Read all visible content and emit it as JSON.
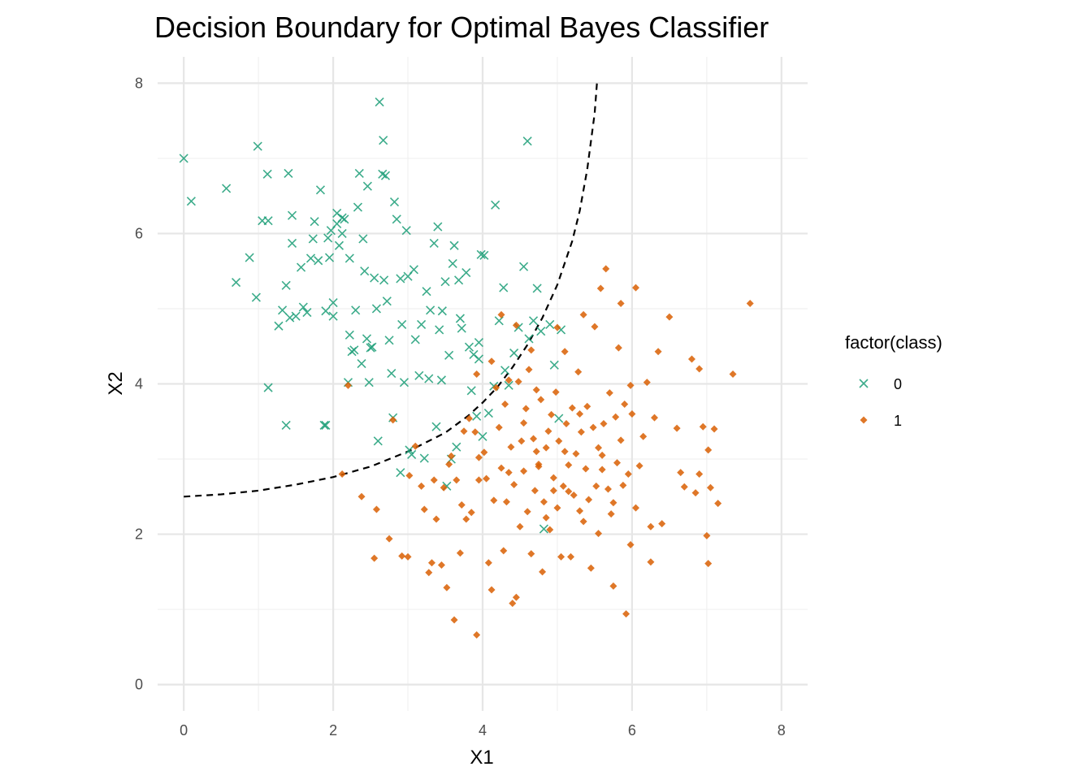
{
  "chart_data": {
    "type": "scatter",
    "title": "Decision Boundary for Optimal Bayes Classifier",
    "xlabel": "X1",
    "ylabel": "X2",
    "xlim": [
      -0.35,
      8.35
    ],
    "ylim": [
      -0.35,
      8.35
    ],
    "x_ticks": [
      0,
      2,
      4,
      6,
      8
    ],
    "y_ticks": [
      0,
      2,
      4,
      6,
      8
    ],
    "grid": true,
    "legend": {
      "title": "factor(class)",
      "position": "right"
    },
    "series": [
      {
        "name": "0",
        "marker": "x",
        "color": "#1b9e77",
        "points": [
          [
            0.0,
            7.0
          ],
          [
            0.1,
            6.43
          ],
          [
            0.57,
            6.6
          ],
          [
            0.7,
            5.35
          ],
          [
            0.88,
            5.68
          ],
          [
            0.97,
            5.15
          ],
          [
            0.99,
            7.16
          ],
          [
            1.05,
            6.17
          ],
          [
            1.13,
            6.17
          ],
          [
            1.12,
            6.79
          ],
          [
            1.13,
            3.95
          ],
          [
            1.27,
            4.77
          ],
          [
            1.32,
            4.98
          ],
          [
            1.37,
            5.31
          ],
          [
            1.37,
            3.45
          ],
          [
            1.4,
            6.8
          ],
          [
            1.42,
            4.88
          ],
          [
            1.45,
            5.87
          ],
          [
            1.45,
            6.24
          ],
          [
            1.5,
            4.9
          ],
          [
            1.57,
            5.55
          ],
          [
            1.6,
            5.02
          ],
          [
            1.65,
            4.95
          ],
          [
            1.73,
            5.93
          ],
          [
            1.75,
            6.16
          ],
          [
            1.8,
            5.64
          ],
          [
            1.83,
            6.58
          ],
          [
            1.88,
            3.45
          ],
          [
            1.9,
            3.45
          ],
          [
            1.9,
            4.97
          ],
          [
            1.93,
            5.94
          ],
          [
            1.95,
            5.68
          ],
          [
            1.97,
            6.04
          ],
          [
            2.0,
            4.9
          ],
          [
            2.0,
            5.08
          ],
          [
            2.05,
            6.27
          ],
          [
            2.05,
            6.13
          ],
          [
            2.08,
            5.84
          ],
          [
            2.12,
            6.21
          ],
          [
            2.15,
            6.19
          ],
          [
            2.2,
            4.02
          ],
          [
            2.22,
            5.67
          ],
          [
            2.22,
            4.65
          ],
          [
            2.25,
            4.43
          ],
          [
            2.28,
            4.45
          ],
          [
            2.3,
            4.98
          ],
          [
            2.33,
            6.35
          ],
          [
            2.35,
            6.8
          ],
          [
            2.38,
            4.27
          ],
          [
            2.42,
            5.5
          ],
          [
            2.45,
            4.6
          ],
          [
            2.46,
            6.63
          ],
          [
            2.48,
            4.02
          ],
          [
            2.5,
            4.48
          ],
          [
            2.52,
            4.49
          ],
          [
            2.55,
            5.41
          ],
          [
            2.6,
            3.24
          ],
          [
            2.62,
            7.75
          ],
          [
            2.66,
            6.79
          ],
          [
            2.67,
            7.24
          ],
          [
            2.68,
            5.38
          ],
          [
            2.7,
            6.77
          ],
          [
            2.72,
            5.1
          ],
          [
            2.75,
            4.58
          ],
          [
            2.78,
            4.14
          ],
          [
            2.8,
            3.55
          ],
          [
            2.82,
            6.42
          ],
          [
            2.85,
            6.19
          ],
          [
            2.9,
            2.82
          ],
          [
            2.92,
            4.79
          ],
          [
            2.95,
            4.02
          ],
          [
            2.98,
            6.04
          ],
          [
            3.0,
            5.43
          ],
          [
            3.02,
            3.12
          ],
          [
            3.05,
            3.06
          ],
          [
            3.08,
            5.52
          ],
          [
            3.1,
            4.59
          ],
          [
            3.15,
            4.11
          ],
          [
            3.18,
            4.79
          ],
          [
            3.22,
            3.01
          ],
          [
            3.25,
            5.23
          ],
          [
            3.28,
            4.07
          ],
          [
            3.3,
            4.98
          ],
          [
            3.35,
            5.87
          ],
          [
            3.38,
            3.43
          ],
          [
            3.4,
            6.09
          ],
          [
            3.42,
            4.72
          ],
          [
            3.46,
            4.97
          ],
          [
            3.5,
            5.36
          ],
          [
            3.52,
            2.64
          ],
          [
            3.55,
            4.38
          ],
          [
            3.58,
            3.0
          ],
          [
            3.6,
            5.6
          ],
          [
            3.62,
            5.84
          ],
          [
            3.65,
            3.16
          ],
          [
            3.68,
            5.38
          ],
          [
            3.7,
            4.87
          ],
          [
            3.72,
            4.74
          ],
          [
            3.78,
            5.48
          ],
          [
            3.82,
            4.49
          ],
          [
            3.85,
            3.91
          ],
          [
            3.88,
            4.39
          ],
          [
            3.92,
            3.57
          ],
          [
            3.95,
            4.33
          ],
          [
            3.98,
            5.72
          ],
          [
            4.0,
            3.3
          ],
          [
            4.02,
            5.71
          ],
          [
            4.08,
            3.61
          ],
          [
            4.15,
            3.97
          ],
          [
            4.17,
            6.38
          ],
          [
            4.22,
            4.84
          ],
          [
            4.28,
            5.28
          ],
          [
            4.35,
            3.98
          ],
          [
            4.42,
            4.41
          ],
          [
            4.48,
            4.75
          ],
          [
            4.55,
            5.56
          ],
          [
            4.6,
            7.23
          ],
          [
            4.68,
            4.84
          ],
          [
            4.73,
            5.27
          ],
          [
            4.78,
            4.7
          ],
          [
            4.82,
            2.07
          ],
          [
            4.9,
            4.79
          ],
          [
            4.96,
            4.25
          ],
          [
            5.02,
            3.54
          ],
          [
            5.05,
            4.72
          ],
          [
            4.3,
            4.18
          ],
          [
            3.45,
            4.05
          ],
          [
            2.58,
            5.0
          ],
          [
            2.4,
            5.93
          ],
          [
            2.12,
            6.0
          ],
          [
            1.7,
            5.67
          ],
          [
            2.9,
            5.4
          ],
          [
            3.95,
            4.55
          ],
          [
            4.62,
            4.6
          ]
        ]
      },
      {
        "name": "1",
        "marker": "diamond",
        "color": "#d95f02",
        "points": [
          [
            2.12,
            2.8
          ],
          [
            2.2,
            3.98
          ],
          [
            2.38,
            2.5
          ],
          [
            2.55,
            1.68
          ],
          [
            2.58,
            2.33
          ],
          [
            2.75,
            1.94
          ],
          [
            2.8,
            3.52
          ],
          [
            2.92,
            1.71
          ],
          [
            3.0,
            1.7
          ],
          [
            3.02,
            2.78
          ],
          [
            3.1,
            3.17
          ],
          [
            3.18,
            2.64
          ],
          [
            3.22,
            2.33
          ],
          [
            3.28,
            1.49
          ],
          [
            3.32,
            1.62
          ],
          [
            3.38,
            2.2
          ],
          [
            3.45,
            1.59
          ],
          [
            3.48,
            2.62
          ],
          [
            3.52,
            1.29
          ],
          [
            3.58,
            3.04
          ],
          [
            3.62,
            0.86
          ],
          [
            3.65,
            2.72
          ],
          [
            3.7,
            1.75
          ],
          [
            3.72,
            2.39
          ],
          [
            3.78,
            2.2
          ],
          [
            3.82,
            3.54
          ],
          [
            3.85,
            2.29
          ],
          [
            3.9,
            3.36
          ],
          [
            3.92,
            0.66
          ],
          [
            3.95,
            2.72
          ],
          [
            4.02,
            3.09
          ],
          [
            4.05,
            2.74
          ],
          [
            4.08,
            1.62
          ],
          [
            4.12,
            1.26
          ],
          [
            4.18,
            3.95
          ],
          [
            4.22,
            3.42
          ],
          [
            4.25,
            2.88
          ],
          [
            4.28,
            1.78
          ],
          [
            4.3,
            3.73
          ],
          [
            4.32,
            2.43
          ],
          [
            4.35,
            4.05
          ],
          [
            4.38,
            3.16
          ],
          [
            4.4,
            1.08
          ],
          [
            4.42,
            2.66
          ],
          [
            4.45,
            1.16
          ],
          [
            4.48,
            4.03
          ],
          [
            4.52,
            3.24
          ],
          [
            4.55,
            2.84
          ],
          [
            4.58,
            3.67
          ],
          [
            4.6,
            2.3
          ],
          [
            4.62,
            4.19
          ],
          [
            4.65,
            1.74
          ],
          [
            4.68,
            3.27
          ],
          [
            4.7,
            2.58
          ],
          [
            4.72,
            3.92
          ],
          [
            4.75,
            2.93
          ],
          [
            4.78,
            3.79
          ],
          [
            4.8,
            1.5
          ],
          [
            4.82,
            2.43
          ],
          [
            4.85,
            3.15
          ],
          [
            4.88,
            3.37
          ],
          [
            4.9,
            2.06
          ],
          [
            4.92,
            3.59
          ],
          [
            4.95,
            2.75
          ],
          [
            4.98,
            3.89
          ],
          [
            5.0,
            2.35
          ],
          [
            5.02,
            3.24
          ],
          [
            5.05,
            1.7
          ],
          [
            5.08,
            2.64
          ],
          [
            5.1,
            4.43
          ],
          [
            5.12,
            3.47
          ],
          [
            5.15,
            2.92
          ],
          [
            5.18,
            1.7
          ],
          [
            5.2,
            3.68
          ],
          [
            5.22,
            2.52
          ],
          [
            5.25,
            3.07
          ],
          [
            5.28,
            4.16
          ],
          [
            5.3,
            2.31
          ],
          [
            5.32,
            3.36
          ],
          [
            5.35,
            4.92
          ],
          [
            5.38,
            2.87
          ],
          [
            5.4,
            3.7
          ],
          [
            5.42,
            2.46
          ],
          [
            5.45,
            1.55
          ],
          [
            5.48,
            3.42
          ],
          [
            5.5,
            4.76
          ],
          [
            5.52,
            2.64
          ],
          [
            5.55,
            3.15
          ],
          [
            5.58,
            5.27
          ],
          [
            5.6,
            2.86
          ],
          [
            5.62,
            3.47
          ],
          [
            5.65,
            5.53
          ],
          [
            5.68,
            2.6
          ],
          [
            5.7,
            3.88
          ],
          [
            5.72,
            2.27
          ],
          [
            5.75,
            1.31
          ],
          [
            5.78,
            3.56
          ],
          [
            5.8,
            2.95
          ],
          [
            5.82,
            4.48
          ],
          [
            5.85,
            5.07
          ],
          [
            5.88,
            2.65
          ],
          [
            5.9,
            3.73
          ],
          [
            5.92,
            0.94
          ],
          [
            5.95,
            2.8
          ],
          [
            5.98,
            3.98
          ],
          [
            6.05,
            5.28
          ],
          [
            6.1,
            2.91
          ],
          [
            6.15,
            3.3
          ],
          [
            6.2,
            4.02
          ],
          [
            6.25,
            1.63
          ],
          [
            6.3,
            3.55
          ],
          [
            6.35,
            4.43
          ],
          [
            6.4,
            2.14
          ],
          [
            6.5,
            4.89
          ],
          [
            6.6,
            3.41
          ],
          [
            6.65,
            2.82
          ],
          [
            6.7,
            2.63
          ],
          [
            6.8,
            4.33
          ],
          [
            6.85,
            2.55
          ],
          [
            6.9,
            4.2
          ],
          [
            6.95,
            3.43
          ],
          [
            7.0,
            1.98
          ],
          [
            7.02,
            3.12
          ],
          [
            7.05,
            2.62
          ],
          [
            7.1,
            3.4
          ],
          [
            7.15,
            2.41
          ],
          [
            7.35,
            4.13
          ],
          [
            7.58,
            5.07
          ],
          [
            7.02,
            1.61
          ],
          [
            6.9,
            2.8
          ],
          [
            6.25,
            2.1
          ],
          [
            6.0,
            3.6
          ],
          [
            5.98,
            1.86
          ],
          [
            5.75,
            2.42
          ],
          [
            5.55,
            2.01
          ],
          [
            5.35,
            2.17
          ],
          [
            5.15,
            2.57
          ],
          [
            4.95,
            2.58
          ],
          [
            4.75,
            2.9
          ],
          [
            4.55,
            3.48
          ],
          [
            4.35,
            2.82
          ],
          [
            4.15,
            2.45
          ],
          [
            3.95,
            3.02
          ],
          [
            3.75,
            3.37
          ],
          [
            3.55,
            2.93
          ],
          [
            3.35,
            2.72
          ],
          [
            4.65,
            4.45
          ],
          [
            5.0,
            4.75
          ],
          [
            4.45,
            4.78
          ],
          [
            4.25,
            4.92
          ],
          [
            4.12,
            4.3
          ],
          [
            3.92,
            4.13
          ],
          [
            4.72,
            3.1
          ],
          [
            5.1,
            3.1
          ],
          [
            5.3,
            3.6
          ],
          [
            5.6,
            3.05
          ],
          [
            5.85,
            3.25
          ],
          [
            6.05,
            2.35
          ],
          [
            4.85,
            2.22
          ],
          [
            4.5,
            2.1
          ]
        ]
      }
    ],
    "boundary": {
      "style": "dashed",
      "color": "#000000",
      "points": [
        [
          0.0,
          2.5
        ],
        [
          0.5,
          2.53
        ],
        [
          1.0,
          2.58
        ],
        [
          1.5,
          2.66
        ],
        [
          2.0,
          2.76
        ],
        [
          2.5,
          2.9
        ],
        [
          3.0,
          3.1
        ],
        [
          3.5,
          3.35
        ],
        [
          3.8,
          3.57
        ],
        [
          4.0,
          3.75
        ],
        [
          4.2,
          3.96
        ],
        [
          4.4,
          4.22
        ],
        [
          4.6,
          4.52
        ],
        [
          4.8,
          4.88
        ],
        [
          5.0,
          5.32
        ],
        [
          5.2,
          5.9
        ],
        [
          5.3,
          6.3
        ],
        [
          5.4,
          6.85
        ],
        [
          5.5,
          7.6
        ],
        [
          5.53,
          8.0
        ]
      ]
    }
  }
}
